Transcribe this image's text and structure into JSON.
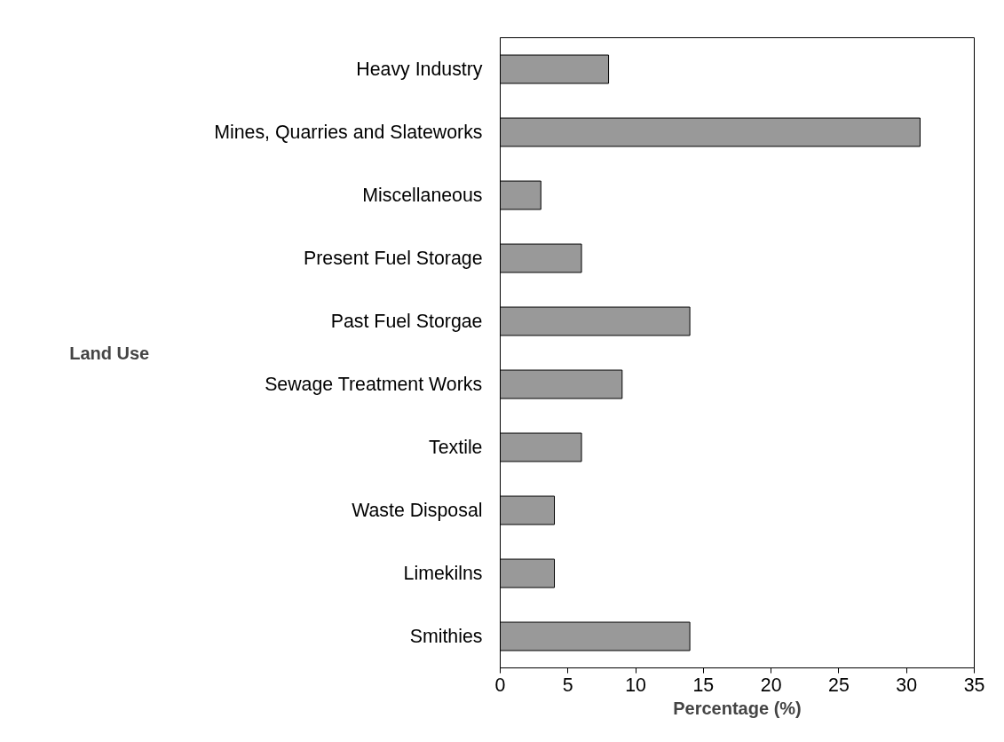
{
  "chart_data": {
    "type": "bar",
    "orientation": "horizontal",
    "categories": [
      "Heavy Industry",
      "Mines, Quarries and Slateworks",
      "Miscellaneous",
      "Present Fuel Storage",
      "Past Fuel Storgae",
      "Sewage Treatment Works",
      "Textile",
      "Waste Disposal",
      "Limekilns",
      "Smithies"
    ],
    "values": [
      8,
      31,
      3,
      6,
      14,
      9,
      6,
      4,
      4,
      14
    ],
    "color": "#999999",
    "xlim": [
      0,
      35
    ],
    "xticks": [
      0,
      5,
      10,
      15,
      20,
      25,
      30,
      35
    ],
    "xlabel": "Percentage (%)",
    "ylabel": "Land Use",
    "grid": false
  }
}
